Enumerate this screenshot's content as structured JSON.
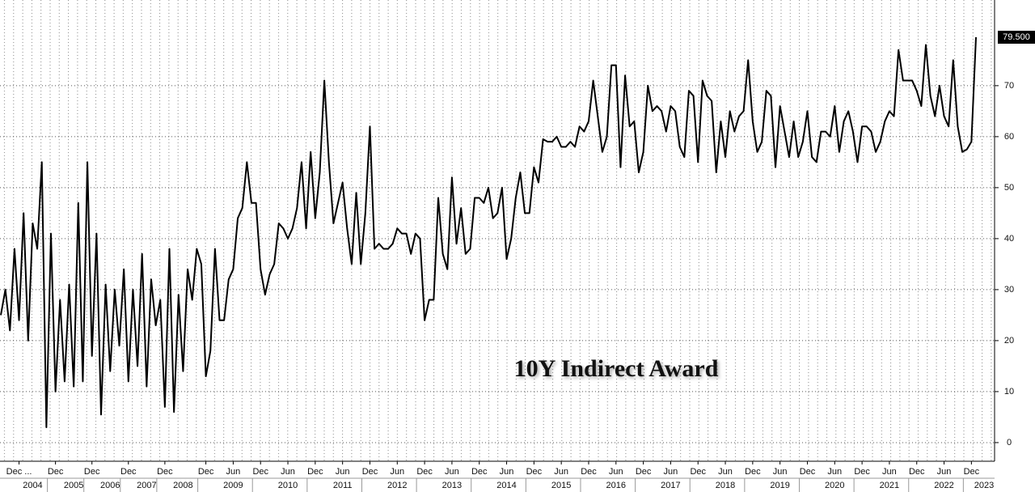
{
  "chart_data": {
    "type": "line",
    "annotation": "10Y Indirect Award",
    "last_value_label": "79.500",
    "color": "#000000",
    "grid": true,
    "ylim": [
      -3.5,
      86.8
    ],
    "yticks": [
      0,
      10,
      20,
      30,
      40,
      50,
      60,
      70
    ],
    "categories": [
      null,
      null,
      null,
      null,
      "Dec ...",
      null,
      null,
      null,
      null,
      null,
      null,
      null,
      "Dec",
      null,
      null,
      null,
      null,
      null,
      null,
      null,
      "Dec",
      null,
      null,
      null,
      null,
      null,
      null,
      null,
      "Dec",
      null,
      null,
      null,
      null,
      null,
      null,
      null,
      "Dec",
      null,
      null,
      null,
      null,
      null,
      null,
      null,
      null,
      "Dec",
      null,
      null,
      null,
      null,
      null,
      "Jun",
      null,
      null,
      null,
      null,
      null,
      "Dec",
      null,
      null,
      null,
      null,
      null,
      "Jun",
      null,
      null,
      null,
      null,
      null,
      "Dec",
      null,
      null,
      null,
      null,
      null,
      "Jun",
      null,
      null,
      null,
      null,
      null,
      "Dec",
      null,
      null,
      null,
      null,
      null,
      "Jun",
      null,
      null,
      null,
      null,
      null,
      "Dec",
      null,
      null,
      null,
      null,
      null,
      "Jun",
      null,
      null,
      null,
      null,
      null,
      "Dec",
      null,
      null,
      null,
      null,
      null,
      "Jun",
      null,
      null,
      null,
      null,
      null,
      "Dec",
      null,
      null,
      null,
      null,
      null,
      "Jun",
      null,
      null,
      null,
      null,
      null,
      "Dec",
      null,
      null,
      null,
      null,
      null,
      "Jun",
      null,
      null,
      null,
      null,
      null,
      "Dec",
      null,
      null,
      null,
      null,
      null,
      "Jun",
      null,
      null,
      null,
      null,
      null,
      "Dec",
      null,
      null,
      null,
      null,
      null,
      "Jun",
      null,
      null,
      null,
      null,
      null,
      "Dec",
      null,
      null,
      null,
      null,
      null,
      "Jun",
      null,
      null,
      null,
      null,
      null,
      "Dec",
      null,
      null,
      null,
      null,
      null,
      "Jun",
      null,
      null,
      null,
      null,
      null,
      "Dec",
      null,
      null,
      null,
      null,
      null,
      "Jun",
      null,
      null,
      null,
      null,
      null,
      "Dec",
      null,
      null,
      null,
      null,
      null,
      "Jun",
      null,
      null,
      null,
      null,
      null,
      "Dec",
      null
    ],
    "year_labels": [
      null,
      null,
      null,
      null,
      null,
      null,
      null,
      "2004",
      null,
      null,
      null,
      null,
      null,
      null,
      null,
      null,
      "2005",
      null,
      null,
      null,
      null,
      null,
      null,
      null,
      "2006",
      null,
      null,
      null,
      null,
      null,
      null,
      null,
      "2007",
      null,
      null,
      null,
      null,
      null,
      null,
      null,
      "2008",
      null,
      null,
      null,
      null,
      null,
      null,
      null,
      null,
      null,
      null,
      "2009",
      null,
      null,
      null,
      null,
      null,
      null,
      null,
      null,
      null,
      null,
      null,
      "2010",
      null,
      null,
      null,
      null,
      null,
      null,
      null,
      null,
      null,
      null,
      null,
      "2011",
      null,
      null,
      null,
      null,
      null,
      null,
      null,
      null,
      null,
      null,
      null,
      "2012",
      null,
      null,
      null,
      null,
      null,
      null,
      null,
      null,
      null,
      null,
      null,
      "2013",
      null,
      null,
      null,
      null,
      null,
      null,
      null,
      null,
      null,
      null,
      null,
      "2014",
      null,
      null,
      null,
      null,
      null,
      null,
      null,
      null,
      null,
      null,
      null,
      "2015",
      null,
      null,
      null,
      null,
      null,
      null,
      null,
      null,
      null,
      null,
      null,
      "2016",
      null,
      null,
      null,
      null,
      null,
      null,
      null,
      null,
      null,
      null,
      null,
      "2017",
      null,
      null,
      null,
      null,
      null,
      null,
      null,
      null,
      null,
      null,
      null,
      "2018",
      null,
      null,
      null,
      null,
      null,
      null,
      null,
      null,
      null,
      null,
      null,
      "2019",
      null,
      null,
      null,
      null,
      null,
      null,
      null,
      null,
      null,
      null,
      null,
      "2020",
      null,
      null,
      null,
      null,
      null,
      null,
      null,
      null,
      null,
      null,
      null,
      "2021",
      null,
      null,
      null,
      null,
      null,
      null,
      null,
      null,
      null,
      null,
      null,
      "2022",
      null,
      null,
      null,
      null,
      null,
      null,
      "2023"
    ],
    "values": [
      25,
      30,
      22,
      38,
      24,
      45,
      20,
      43,
      38,
      55,
      3,
      41,
      10,
      28,
      12,
      31,
      11,
      47,
      12,
      55,
      17,
      41,
      5.5,
      31,
      14,
      30,
      19,
      34,
      12,
      30,
      15,
      37,
      11,
      32,
      23,
      28,
      7,
      38,
      6,
      29,
      14,
      34,
      28,
      38,
      35,
      13,
      18,
      38,
      24,
      24,
      32,
      34,
      44,
      46,
      55,
      47,
      47,
      34,
      29,
      33,
      35,
      43,
      42,
      40,
      42,
      46,
      55,
      42,
      57,
      44,
      53,
      71,
      55,
      43,
      47,
      51,
      42,
      35,
      49,
      35,
      45,
      62,
      38,
      39,
      38,
      38,
      39,
      42,
      41,
      41,
      37,
      41,
      40,
      24,
      28,
      28,
      48,
      37,
      34,
      52,
      39,
      46,
      37,
      38,
      48,
      48,
      47,
      50,
      44,
      45,
      50,
      36,
      40,
      48,
      53,
      45,
      45,
      54,
      51,
      59.5,
      59,
      59,
      60,
      58,
      58,
      59,
      58,
      62,
      61,
      63,
      71,
      64,
      57,
      60,
      74,
      74,
      54,
      72,
      62,
      63,
      53,
      57,
      70,
      65,
      66,
      65,
      61,
      66,
      65,
      58,
      56,
      69,
      68,
      55,
      71,
      68,
      67,
      53,
      63,
      56,
      65,
      61,
      64,
      65,
      75,
      63,
      57,
      59,
      69,
      68,
      54,
      66,
      61,
      56,
      63,
      56,
      59,
      65,
      56,
      55,
      61,
      61,
      60,
      66,
      57,
      63,
      65,
      61,
      55,
      62,
      62,
      61,
      57,
      59,
      63,
      65,
      64,
      77,
      71,
      71,
      71,
      69,
      66,
      78,
      68,
      64,
      70,
      64,
      62,
      75,
      62,
      57,
      57.5,
      59,
      79.5
    ]
  }
}
